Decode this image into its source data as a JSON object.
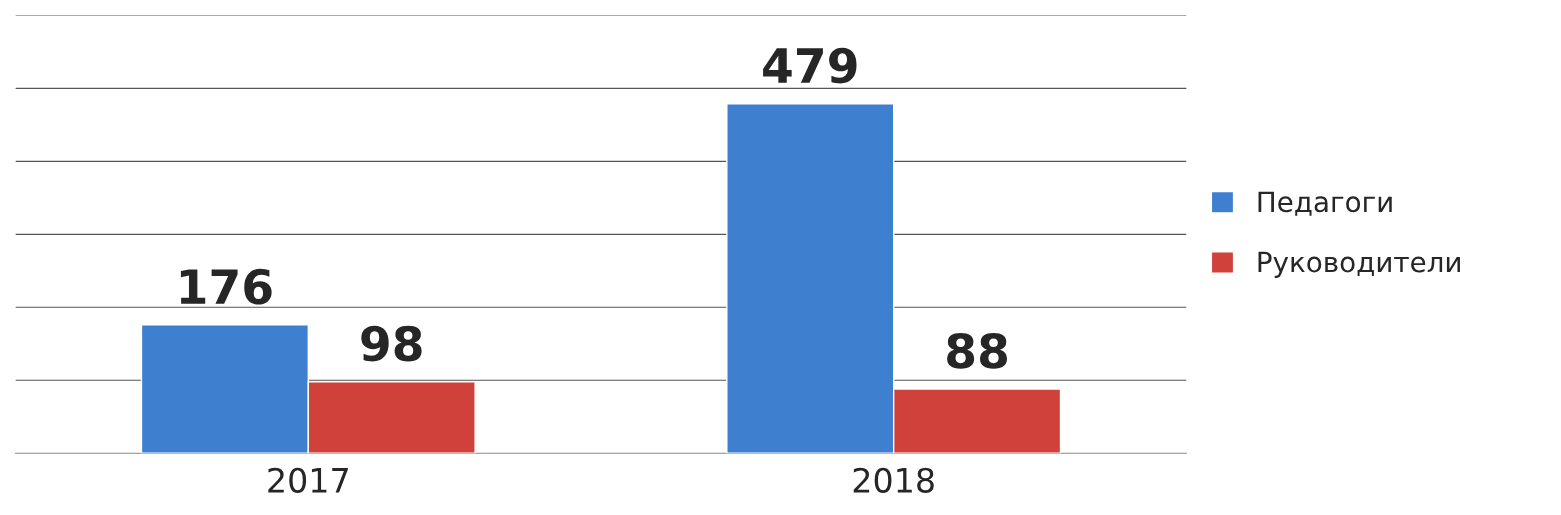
{
  "chart_data": {
    "type": "bar",
    "categories": [
      "2017",
      "2018"
    ],
    "series": [
      {
        "name": "Педагоги",
        "color": "#3f7fd0",
        "values": [
          176,
          479
        ]
      },
      {
        "name": "Руководители",
        "color": "#d0413c",
        "values": [
          98,
          88
        ]
      }
    ],
    "ylim": [
      0,
      600
    ],
    "yticks": [
      {
        "value": 100,
        "label": null
      },
      {
        "value": 200,
        "label": null
      },
      {
        "value": 300,
        "label": null
      },
      {
        "value": 400,
        "label": null
      },
      {
        "value": 500,
        "label": null
      },
      {
        "value": 600,
        "label": null
      }
    ],
    "tick_labels": "x",
    "grid": "y",
    "legend": "right",
    "data_labels": true
  }
}
